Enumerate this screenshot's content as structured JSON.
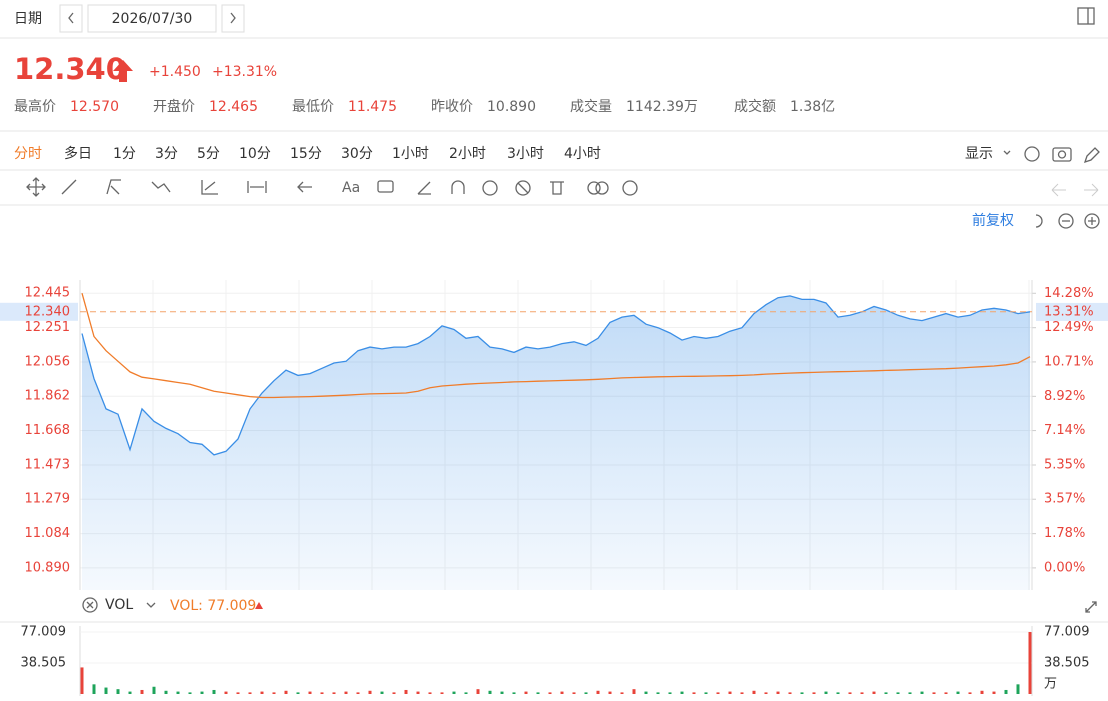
{
  "header": {
    "date_label": "日期",
    "date": "2026/07/30"
  },
  "quote": {
    "price": "12.340",
    "change": "+1.450",
    "change_pct": "+13.31%"
  },
  "stats": [
    {
      "label": "最高价",
      "value": "12.570"
    },
    {
      "label": "开盘价",
      "value": "12.465"
    },
    {
      "label": "最低价",
      "value": "11.475"
    },
    {
      "label": "昨收价",
      "value": "10.890"
    },
    {
      "label": "成交量",
      "value": "1142.39万"
    },
    {
      "label": "成交额",
      "value": "1.38亿"
    }
  ],
  "tabs": [
    "分时",
    "多日",
    "1分",
    "3分",
    "5分",
    "10分",
    "15分",
    "30分",
    "1小时",
    "2小时",
    "3小时",
    "4小时"
  ],
  "toolbar": {
    "text_tool": "Aa",
    "display": "显示",
    "adjust": "前复权"
  },
  "chart_data": [
    {
      "type": "line",
      "fill_first": true,
      "series": [
        {
          "color": "#3a8ee6",
          "values": [
            12.217,
            11.961,
            11.79,
            11.76,
            11.56,
            11.79,
            11.72,
            11.68,
            11.65,
            11.6,
            11.59,
            11.53,
            11.55,
            11.62,
            11.79,
            11.88,
            11.95,
            12.01,
            11.98,
            11.99,
            12.02,
            12.05,
            12.06,
            12.12,
            12.14,
            12.13,
            12.14,
            12.14,
            12.16,
            12.2,
            12.26,
            12.24,
            12.19,
            12.2,
            12.14,
            12.13,
            12.11,
            12.14,
            12.13,
            12.14,
            12.16,
            12.17,
            12.15,
            12.19,
            12.28,
            12.31,
            12.32,
            12.27,
            12.25,
            12.22,
            12.18,
            12.2,
            12.19,
            12.2,
            12.23,
            12.25,
            12.33,
            12.38,
            12.42,
            12.43,
            12.41,
            12.41,
            12.39,
            12.31,
            12.32,
            12.34,
            12.37,
            12.35,
            12.32,
            12.3,
            12.29,
            12.31,
            12.33,
            12.31,
            12.32,
            12.35,
            12.36,
            12.35,
            12.33,
            12.34
          ]
        },
        {
          "color": "#f07c2a",
          "values": [
            12.445,
            12.2,
            12.12,
            12.06,
            12.0,
            11.97,
            11.96,
            11.95,
            11.94,
            11.93,
            11.91,
            11.89,
            11.88,
            11.87,
            11.86,
            11.855,
            11.855,
            11.857,
            11.858,
            11.86,
            11.862,
            11.865,
            11.868,
            11.872,
            11.875,
            11.877,
            11.878,
            11.88,
            11.89,
            11.91,
            11.92,
            11.925,
            11.93,
            11.934,
            11.937,
            11.94,
            11.943,
            11.945,
            11.947,
            11.949,
            11.951,
            11.953,
            11.955,
            11.958,
            11.962,
            11.966,
            11.968,
            11.97,
            11.972,
            11.973,
            11.974,
            11.975,
            11.976,
            11.977,
            11.978,
            11.98,
            11.983,
            11.987,
            11.99,
            11.993,
            11.995,
            11.997,
            11.999,
            12.001,
            12.002,
            12.004,
            12.006,
            12.008,
            12.01,
            12.012,
            12.014,
            12.016,
            12.018,
            12.021,
            12.025,
            12.029,
            12.033,
            12.04,
            12.05,
            12.086
          ]
        }
      ],
      "ylim": [
        10.765,
        12.52
      ],
      "yticks": [
        12.445,
        12.251,
        12.056,
        11.862,
        11.668,
        11.473,
        11.279,
        11.084,
        {
          "value": 10.89,
          "label": "10.890"
        }
      ],
      "y2lim": [
        -1.15,
        14.97
      ],
      "y2ticks": [
        {
          "value": 14.28,
          "label": "14.28%"
        },
        {
          "value": 12.49,
          "label": "12.49%"
        },
        {
          "value": 10.71,
          "label": "10.71%"
        },
        {
          "value": 8.92,
          "label": "8.92%"
        },
        {
          "value": 7.14,
          "label": "7.14%"
        },
        {
          "value": 5.35,
          "label": "5.35%"
        },
        {
          "value": 3.57,
          "label": "3.57%"
        },
        {
          "value": 1.78,
          "label": "1.78%"
        },
        {
          "value": 0,
          "label": "0.00%"
        }
      ],
      "last_price": {
        "value": 12.34,
        "label": "12.340"
      },
      "last_pct": {
        "value": 13.31,
        "label": "13.31%"
      },
      "grid": true
    },
    {
      "type": "bar",
      "indicator": "VOL",
      "readout": "VOL: 77.009",
      "unit": "万",
      "up_color": "#e8433a",
      "down_color": "#1ea45b",
      "values": [
        33,
        12,
        8,
        6,
        3,
        5,
        9,
        4,
        3,
        2,
        3,
        5,
        3,
        2,
        2,
        3,
        2,
        4,
        2,
        3,
        2,
        2,
        3,
        2,
        4,
        3,
        2,
        5,
        3,
        2,
        2,
        3,
        2,
        6,
        4,
        3,
        2,
        3,
        2,
        2,
        3,
        2,
        2,
        4,
        3,
        2,
        6,
        3,
        2,
        2,
        3,
        2,
        2,
        2,
        3,
        2,
        4,
        2,
        3,
        2,
        2,
        2,
        3,
        2,
        2,
        2,
        3,
        2,
        2,
        2,
        3,
        2,
        2,
        3,
        2,
        4,
        3,
        5,
        12,
        77.009
      ],
      "ylim": [
        0,
        77.009
      ],
      "yticks": [
        77.009,
        38.505
      ]
    }
  ]
}
